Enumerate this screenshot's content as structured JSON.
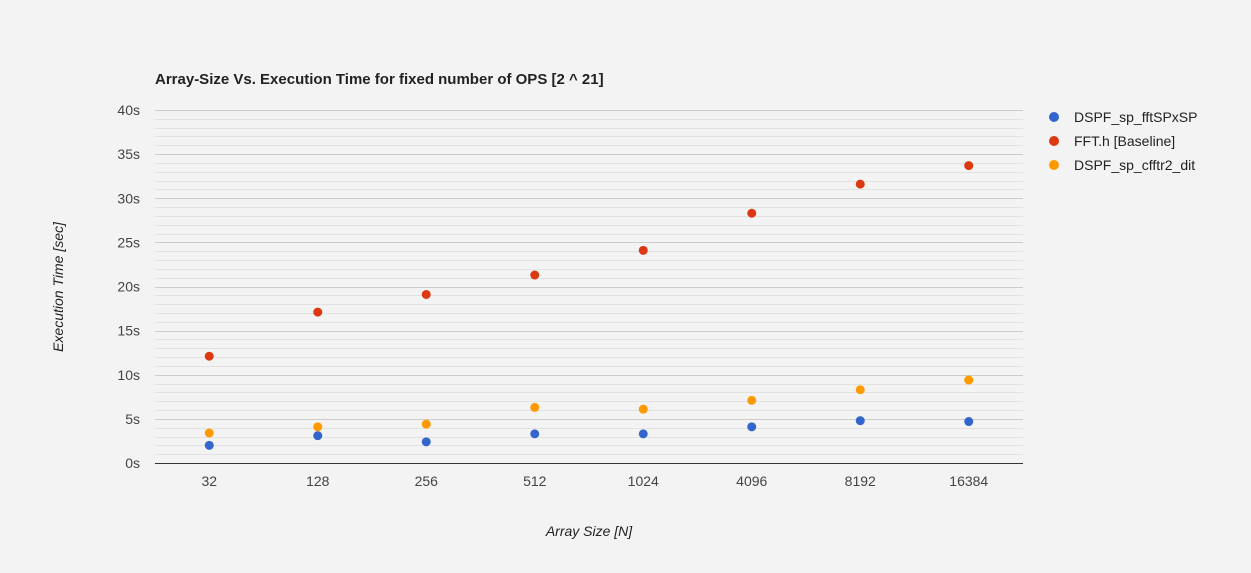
{
  "colors": {
    "background": "#f3f3f3",
    "major_grid": "#cccccc",
    "minor_grid": "#e2e2e2",
    "baseline": "#333333"
  },
  "chart_data": {
    "type": "scatter",
    "title": "Array-Size Vs. Execution Time for fixed number of OPS [2 ^ 21]",
    "xlabel": "Array Size [N]",
    "ylabel": "Execution Time [sec]",
    "categories": [
      "32",
      "128",
      "256",
      "512",
      "1024",
      "4096",
      "8192",
      "16384"
    ],
    "yticks": [
      "0s",
      "5s",
      "10s",
      "15s",
      "20s",
      "25s",
      "30s",
      "35s",
      "40s"
    ],
    "ylim": [
      0,
      40
    ],
    "y_major_step": 5,
    "y_minor_step": 1,
    "grid": true,
    "legend_position": "right",
    "series": [
      {
        "name": "DSPF_sp_fftSPxSP",
        "color": "#3366cc",
        "values": [
          2.0,
          3.1,
          2.4,
          3.3,
          3.3,
          4.1,
          4.8,
          4.7
        ]
      },
      {
        "name": "FFT.h [Baseline]",
        "color": "#dc3912",
        "values": [
          12.1,
          17.1,
          19.1,
          21.3,
          24.1,
          28.3,
          31.6,
          33.7
        ]
      },
      {
        "name": "DSPF_sp_cfftr2_dit",
        "color": "#ff9900",
        "values": [
          3.4,
          4.1,
          4.4,
          6.3,
          6.1,
          7.1,
          8.3,
          9.4
        ]
      }
    ]
  }
}
